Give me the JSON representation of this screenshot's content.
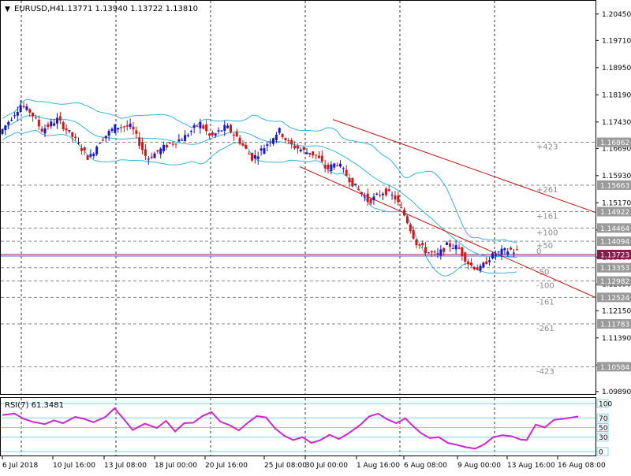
{
  "header": {
    "symbol_label": "EURUSD,H4",
    "ohlc_values": "1.13771 1.13940 1.13722 1.13810"
  },
  "rsi_label": "RSI(7) 61.3481",
  "colors": {
    "up_candle": "#1515d4",
    "down_candle": "#d41515",
    "bollinger": "#35b6d9",
    "channel": "#cc1111",
    "rsi_line": "#d025d0",
    "current_price_line": "#8b1a4a",
    "grid": "#333333"
  },
  "chart_data": [
    {
      "type": "candlestick",
      "symbol": "EURUSD",
      "timeframe": "H4",
      "y_ticks": [
        "1.20450",
        "1.19710",
        "1.18950",
        "1.18190",
        "1.17430",
        "1.16690",
        "1.15930",
        "1.15170",
        "1.14409",
        "1.13650",
        "1.12890",
        "1.12150",
        "1.11390",
        "1.10630",
        "1.09890"
      ],
      "ylim": [
        1.0982,
        1.2082
      ],
      "x_labels": [
        "6 Jul 2018",
        "10 Jul 16:00",
        "13 Jul 08:00",
        "18 Jul 00:00",
        "20 Jul 16:00",
        "25 Jul 08:00",
        "30 Jul 00:00",
        "1 Aug 16:00",
        "6 Aug 08:00",
        "9 Aug 00:00",
        "13 Aug 16:00",
        "16 Aug 08:00"
      ],
      "price_levels": [
        {
          "value": 1.16862,
          "label": "1.16862",
          "fib": "+423"
        },
        {
          "value": 1.15663,
          "label": "1.15663",
          "fib": "+261"
        },
        {
          "value": 1.14922,
          "label": "1.14922",
          "fib": "+161"
        },
        {
          "value": 1.14464,
          "label": "1.14464",
          "fib": "+100"
        },
        {
          "value": 1.14094,
          "label": "1.14094",
          "fib": "+50"
        },
        {
          "value": 1.13723,
          "label": "1.13723",
          "fib": "0"
        },
        {
          "value": 1.13353,
          "label": "1.13353",
          "fib": "-50"
        },
        {
          "value": 1.12982,
          "label": "1.12982",
          "fib": "-100"
        },
        {
          "value": 1.12524,
          "label": "1.12524",
          "fib": "-161"
        },
        {
          "value": 1.11783,
          "label": "1.11783",
          "fib": "-261"
        },
        {
          "value": 1.10584,
          "label": "1.10584",
          "fib": "-423"
        }
      ],
      "current_price": 1.13723,
      "candle_count": 170,
      "price_path": [
        [
          0,
          1.171
        ],
        [
          8,
          1.179
        ],
        [
          12,
          1.177
        ],
        [
          16,
          1.172
        ],
        [
          22,
          1.175
        ],
        [
          28,
          1.17
        ],
        [
          34,
          1.164
        ],
        [
          38,
          1.169
        ],
        [
          44,
          1.173
        ],
        [
          50,
          1.173
        ],
        [
          56,
          1.164
        ],
        [
          60,
          1.166
        ],
        [
          64,
          1.168
        ],
        [
          70,
          1.17
        ],
        [
          76,
          1.174
        ],
        [
          80,
          1.17
        ],
        [
          86,
          1.173
        ],
        [
          90,
          1.17
        ],
        [
          96,
          1.164
        ],
        [
          100,
          1.167
        ],
        [
          106,
          1.172
        ],
        [
          110,
          1.168
        ],
        [
          116,
          1.166
        ],
        [
          120,
          1.165
        ],
        [
          124,
          1.161
        ],
        [
          128,
          1.163
        ],
        [
          134,
          1.157
        ],
        [
          140,
          1.152
        ],
        [
          146,
          1.155
        ],
        [
          150,
          1.153
        ],
        [
          154,
          1.1475
        ],
        [
          158,
          1.1405
        ],
        [
          162,
          1.138
        ],
        [
          166,
          1.137
        ],
        [
          170,
          1.14
        ],
        [
          174,
          1.139
        ],
        [
          178,
          1.1345
        ],
        [
          182,
          1.133
        ],
        [
          186,
          1.1365
        ],
        [
          190,
          1.138
        ],
        [
          194,
          1.1385
        ],
        [
          195,
          1.1381
        ]
      ],
      "series": [
        {
          "name": "RSI(7)",
          "last": 61.3481
        }
      ],
      "rsi_ticks": [
        "100",
        "70",
        "50",
        "30",
        "0"
      ],
      "rsi_levels": [
        70,
        50,
        30
      ],
      "rsi_path": [
        [
          0,
          76
        ],
        [
          4,
          79
        ],
        [
          7,
          68
        ],
        [
          10,
          62
        ],
        [
          14,
          57
        ],
        [
          17,
          65
        ],
        [
          20,
          59
        ],
        [
          24,
          72
        ],
        [
          27,
          68
        ],
        [
          30,
          61
        ],
        [
          34,
          72
        ],
        [
          37,
          90
        ],
        [
          40,
          68
        ],
        [
          43,
          45
        ],
        [
          47,
          58
        ],
        [
          51,
          49
        ],
        [
          54,
          64
        ],
        [
          57,
          42
        ],
        [
          60,
          59
        ],
        [
          63,
          60
        ],
        [
          66,
          74
        ],
        [
          69,
          82
        ],
        [
          72,
          62
        ],
        [
          75,
          55
        ],
        [
          78,
          44
        ],
        [
          81,
          60
        ],
        [
          84,
          74
        ],
        [
          87,
          71
        ],
        [
          90,
          48
        ],
        [
          93,
          33
        ],
        [
          96,
          24
        ],
        [
          99,
          30
        ],
        [
          102,
          18
        ],
        [
          105,
          24
        ],
        [
          108,
          35
        ],
        [
          111,
          26
        ],
        [
          114,
          37
        ],
        [
          118,
          55
        ],
        [
          121,
          73
        ],
        [
          124,
          79
        ],
        [
          127,
          67
        ],
        [
          130,
          59
        ],
        [
          133,
          69
        ],
        [
          135,
          56
        ],
        [
          138,
          39
        ],
        [
          141,
          28
        ],
        [
          144,
          30
        ],
        [
          147,
          18
        ],
        [
          150,
          14
        ],
        [
          153,
          9
        ],
        [
          156,
          6
        ],
        [
          159,
          15
        ],
        [
          162,
          30
        ],
        [
          165,
          34
        ],
        [
          168,
          32
        ],
        [
          171,
          25
        ],
        [
          173,
          24
        ],
        [
          176,
          56
        ],
        [
          179,
          50
        ],
        [
          182,
          66
        ],
        [
          185,
          68
        ],
        [
          190,
          73
        ]
      ]
    }
  ]
}
